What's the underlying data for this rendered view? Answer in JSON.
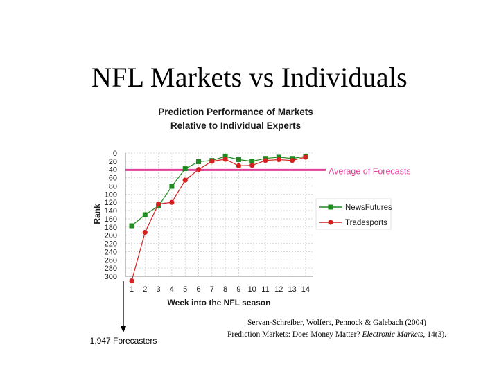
{
  "slide": {
    "title": "NFL Markets vs Individuals"
  },
  "chart_data": {
    "type": "line",
    "title_lines": [
      "Prediction Performance of Markets",
      "Relative to Individual Experts"
    ],
    "xlabel": "Week into the NFL season",
    "ylabel": "Rank",
    "x": [
      1,
      2,
      3,
      4,
      5,
      6,
      7,
      8,
      9,
      10,
      11,
      12,
      13,
      14
    ],
    "ylim": [
      0,
      300
    ],
    "y_inverted": true,
    "y_ticks": [
      0,
      20,
      40,
      60,
      80,
      100,
      120,
      140,
      160,
      180,
      200,
      220,
      240,
      260,
      280,
      300
    ],
    "grid": true,
    "series": [
      {
        "name": "NewsFutures",
        "marker": "square",
        "color": "#1f8a1f",
        "values": [
          177,
          150,
          129,
          81,
          38,
          21,
          18,
          8,
          16,
          20,
          13,
          10,
          13,
          8
        ]
      },
      {
        "name": "Tradesports",
        "marker": "circle",
        "color": "#d42020",
        "values": [
          311,
          193,
          124,
          120,
          66,
          40,
          20,
          15,
          31,
          30,
          18,
          16,
          18,
          10
        ]
      }
    ],
    "reference_line": {
      "label": "Average of Forecasts",
      "value": 41,
      "color": "#e0409a"
    },
    "legend_position": "right",
    "annotation_arrow": "1,947 Forecasters"
  },
  "citation": {
    "line1": "Servan-Schreiber, Wolfers, Pennock & Galebach (2004)",
    "line2_prefix": "Prediction Markets: Does Money Matter? ",
    "line2_journal": "Electronic Markets",
    "line2_suffix": ", 14(3)."
  }
}
